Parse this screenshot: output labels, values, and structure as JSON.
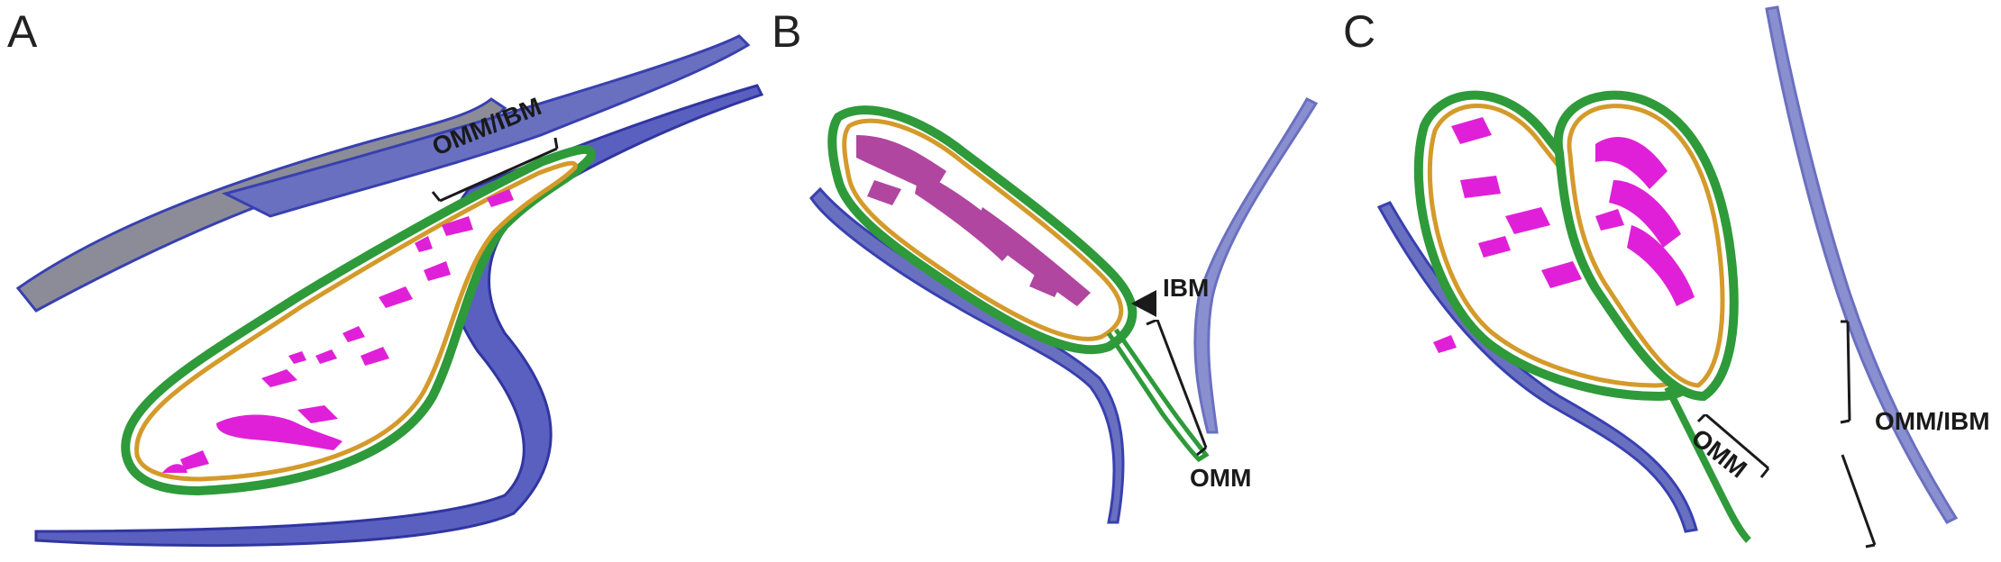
{
  "panels": [
    {
      "letter": "A",
      "labels": [
        "OMM/IBM"
      ]
    },
    {
      "letter": "B",
      "labels": [
        "IBM",
        "OMM"
      ]
    },
    {
      "letter": "C",
      "labels": [
        "OMM",
        "OMM/IBM"
      ]
    }
  ],
  "colors": {
    "outer_membrane": "#2e9a3a",
    "inner_membrane": "#d49a2a",
    "cristae": "#e020d8",
    "cristae_dim": "#b0469f",
    "er_membrane_dark": "#3840b0",
    "er_membrane_light": "#8a8fd0",
    "er_membrane_grey": "#8c8c98",
    "annotation": "#1a1a1a"
  }
}
